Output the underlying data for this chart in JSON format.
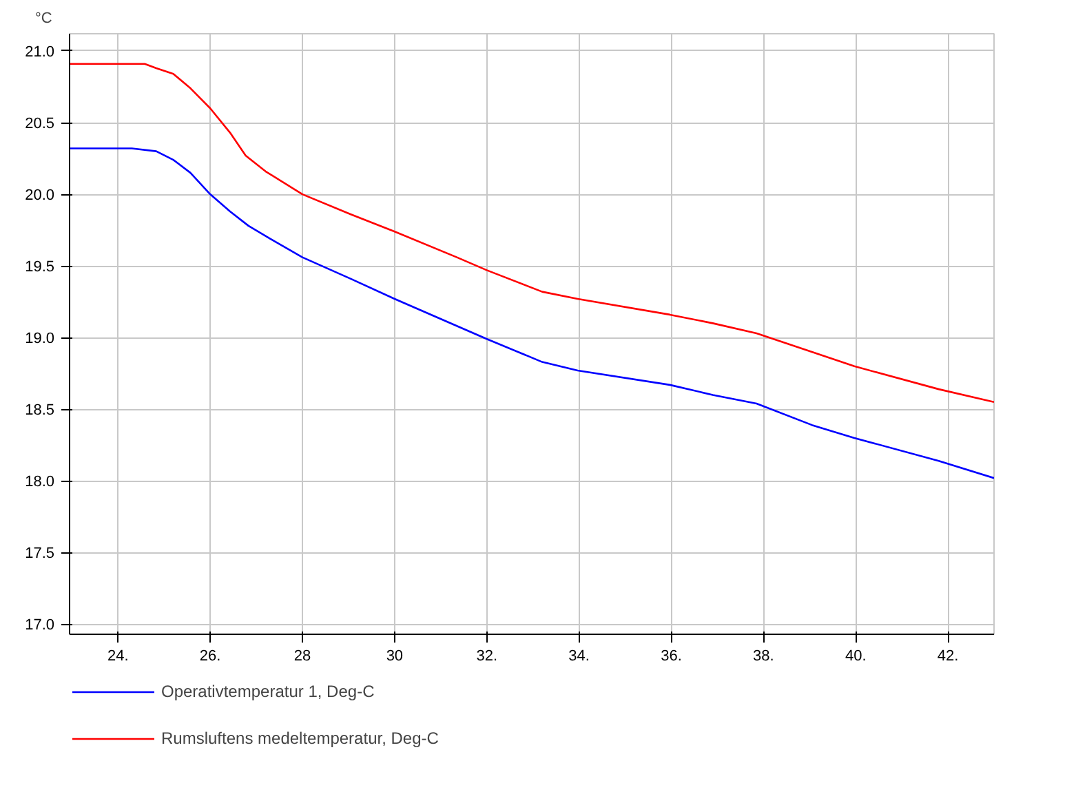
{
  "chart_data": {
    "type": "line",
    "ylabel": "°C",
    "xlim": [
      22.95,
      43.0
    ],
    "ylim": [
      16.93,
      21.12
    ],
    "xticks": [
      {
        "value": 24,
        "label": "24."
      },
      {
        "value": 26,
        "label": "26."
      },
      28,
      30,
      {
        "value": 32,
        "label": "32."
      },
      {
        "value": 34,
        "label": "34."
      },
      {
        "value": 36,
        "label": "36."
      },
      {
        "value": 38,
        "label": "38."
      },
      {
        "value": 40,
        "label": "40."
      },
      {
        "value": 42,
        "label": "42."
      }
    ],
    "yticks": [
      {
        "value": 17,
        "label": "17.0"
      },
      17.5,
      {
        "value": 18,
        "label": "18.0"
      },
      18.5,
      {
        "value": 19,
        "label": "19.0"
      },
      19.5,
      {
        "value": 20,
        "label": "20.0"
      },
      20.5,
      {
        "value": 21,
        "label": "21.0"
      }
    ],
    "grid": true,
    "legend": "bottom",
    "line_style": "solid",
    "marker": "none",
    "series": [
      {
        "name": "Operativtemperatur 1, Deg-C",
        "color": "#0000ff",
        "x": [
          22.95,
          24.3,
          24.83,
          25.2,
          25.57,
          26.0,
          26.43,
          26.83,
          27.3,
          28.0,
          29.05,
          30.0,
          32.0,
          33.2,
          33.97,
          35.97,
          36.9,
          37.85,
          39.05,
          39.97,
          41.8,
          43.0
        ],
        "values": [
          20.32,
          20.32,
          20.3,
          20.24,
          20.15,
          20.0,
          19.88,
          19.78,
          19.69,
          19.56,
          19.41,
          19.27,
          18.99,
          18.83,
          18.77,
          18.67,
          18.6,
          18.54,
          18.39,
          18.3,
          18.14,
          18.02
        ]
      },
      {
        "name": "Rumsluftens medeltemperatur, Deg-C",
        "color": "#ff0000",
        "x": [
          22.95,
          24.58,
          24.83,
          25.2,
          25.57,
          26.0,
          26.43,
          26.77,
          27.2,
          28.0,
          29.05,
          30.0,
          31.35,
          32.0,
          33.2,
          33.97,
          35.97,
          36.9,
          37.85,
          39.05,
          39.97,
          41.8,
          43.0
        ],
        "values": [
          20.91,
          20.91,
          20.88,
          20.84,
          20.74,
          20.6,
          20.43,
          20.27,
          20.16,
          20.0,
          19.86,
          19.74,
          19.56,
          19.47,
          19.32,
          19.27,
          19.16,
          19.1,
          19.03,
          18.9,
          18.8,
          18.64,
          18.55
        ]
      }
    ]
  }
}
